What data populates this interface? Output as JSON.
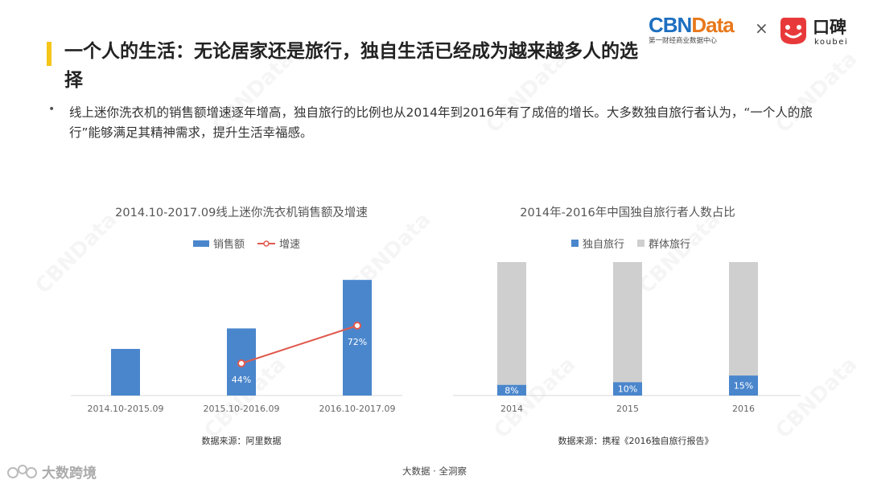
{
  "header": {
    "title": "一个人的生活：无论居家还是旅行，独自生活已经成为越来越多人的选择",
    "logo_cbn_word_a": "CBN",
    "logo_cbn_word_b": "Data",
    "logo_cbn_sub": "第一财经商业数据中心",
    "times": "×",
    "logo_koubei_cn": "口碑",
    "logo_koubei_en": "koubei"
  },
  "summary": {
    "bullet": "•",
    "text": "线上迷你洗衣机的销售额增速逐年增高，独自旅行的比例也从2014年到2016年有了成倍的增长。大多数独自旅行者认为，“一个人的旅行”能够满足其精神需求，提升生活幸福感。"
  },
  "watermark": "CBNData",
  "colors": {
    "accent": "#f5c518",
    "bar_blue": "#4a86cc",
    "line_red": "#e05a4e",
    "bar_gray": "#cfcfcf",
    "axis": "#d9d9d9"
  },
  "chart_data": [
    {
      "type": "bar",
      "title": "2014.10-2017.09线上迷你洗衣机销售额及增速",
      "categories": [
        "2014.10-2015.09",
        "2015.10-2016.09",
        "2016.10-2017.09"
      ],
      "series": [
        {
          "name": "销售额",
          "type": "bar",
          "values": [
            1.0,
            1.44,
            2.48
          ]
        },
        {
          "name": "增速",
          "type": "line",
          "values": [
            null,
            44,
            72
          ],
          "labels": [
            "",
            "44%",
            "72%"
          ]
        }
      ],
      "legend_position": "top",
      "grid": false,
      "source": "数据来源：阿里数据"
    },
    {
      "type": "bar",
      "stacked": true,
      "title": "2014年-2016年中国独自旅行者人数占比",
      "categories": [
        "2014",
        "2015",
        "2016"
      ],
      "series": [
        {
          "name": "独自旅行",
          "values": [
            8,
            10,
            15
          ],
          "labels": [
            "8%",
            "10%",
            "15%"
          ]
        },
        {
          "name": "群体旅行",
          "values": [
            92,
            90,
            85
          ]
        }
      ],
      "ylim": [
        0,
        100
      ],
      "legend_position": "top",
      "grid": false,
      "source": "数据来源：携程《2016独自旅行报告》"
    }
  ],
  "footer": {
    "center": "大数据 · 全洞察",
    "left_brand": "大数跨境"
  }
}
